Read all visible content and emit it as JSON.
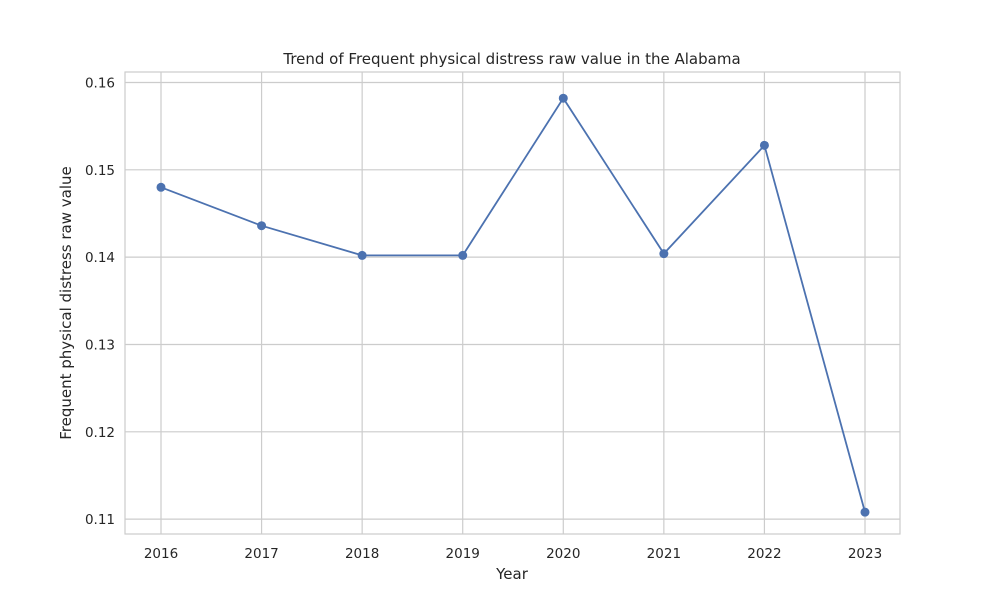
{
  "chart_data": {
    "type": "line",
    "title": "Trend of Frequent physical distress raw value in the Alabama",
    "xlabel": "Year",
    "ylabel": "Frequent physical distress raw value",
    "x": [
      "2016",
      "2017",
      "2018",
      "2019",
      "2020",
      "2021",
      "2022",
      "2023"
    ],
    "series": [
      {
        "values": [
          0.148,
          0.1436,
          0.1402,
          0.1402,
          0.1582,
          0.1404,
          0.1528,
          0.1108
        ]
      }
    ],
    "yticks": [
      "0.11",
      "0.12",
      "0.13",
      "0.14",
      "0.15",
      "0.16"
    ],
    "ylim": [
      0.1083,
      0.1612
    ],
    "grid": true,
    "marker": "circle",
    "color": "#4c72b0"
  }
}
